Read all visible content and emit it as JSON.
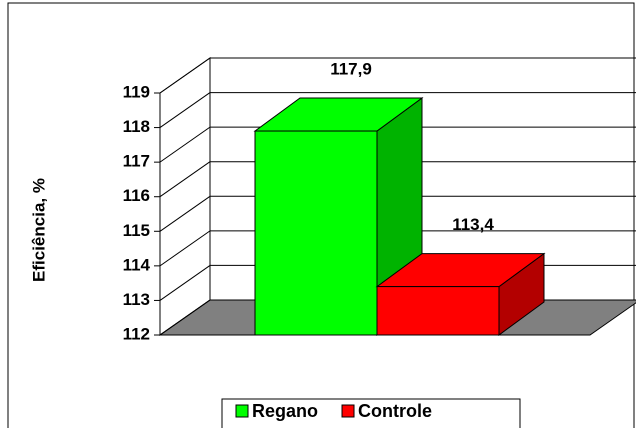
{
  "chart_data": {
    "type": "bar",
    "y_label": "Eficiência, %",
    "series": [
      {
        "name": "Regano",
        "color": "#00ff00",
        "values": [
          117.9
        ],
        "value_labels": [
          "117,9"
        ]
      },
      {
        "name": "Controle",
        "color": "#ff0000",
        "values": [
          113.4
        ],
        "value_labels": [
          "113,4"
        ]
      }
    ],
    "ylim": [
      112,
      119
    ],
    "yticks": [
      112,
      113,
      114,
      115,
      116,
      117,
      118,
      119
    ],
    "grid": true
  }
}
